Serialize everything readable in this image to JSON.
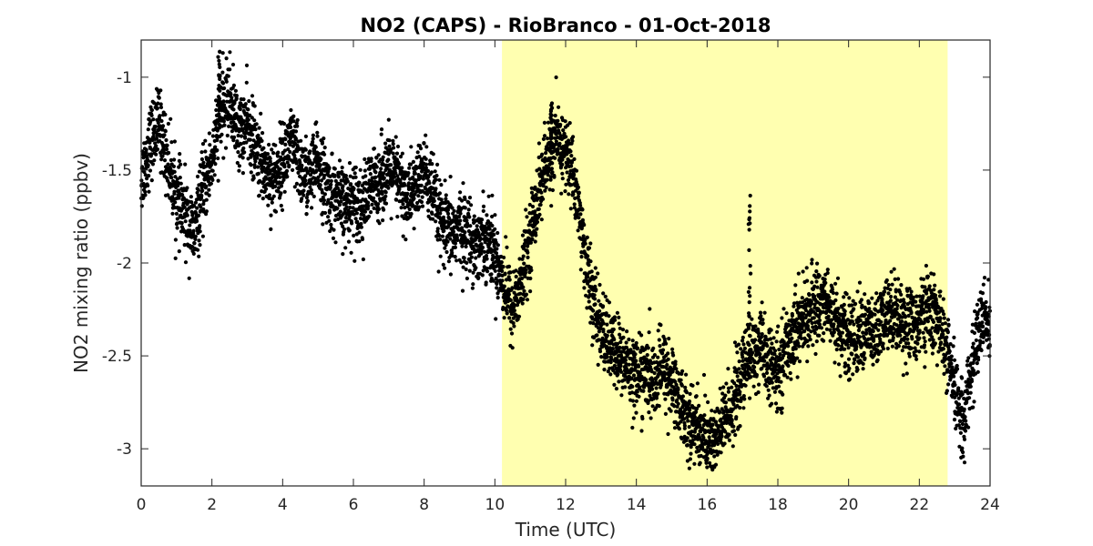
{
  "chart_data": {
    "type": "scatter",
    "title": "NO2 (CAPS) - RioBranco - 01-Oct-2018",
    "xlabel": "Time (UTC)",
    "ylabel": "NO2 mixing ratio (ppbv)",
    "xlim": [
      0,
      24
    ],
    "ylim": [
      -3.2,
      -0.8
    ],
    "xticks": [
      0,
      2,
      4,
      6,
      8,
      10,
      12,
      14,
      16,
      18,
      20,
      22,
      24
    ],
    "yticks": [
      -3,
      -2.5,
      -2,
      -1.5,
      -1
    ],
    "grid": false,
    "legend": "none",
    "marker_color": "#000000",
    "shaded_region": {
      "x": [
        10.2,
        22.8
      ],
      "color": "#ffffb0"
    },
    "series": [
      {
        "x": [
          0,
          0.25,
          0.5,
          0.75,
          1.0,
          1.25,
          1.5,
          1.75,
          2.0,
          2.25,
          2.5,
          2.75,
          3.0,
          3.25,
          3.5,
          3.75,
          4.0,
          4.25,
          4.5,
          4.75,
          5.0,
          5.25,
          5.5,
          5.75,
          6.0,
          6.25,
          6.5,
          6.75,
          7.0,
          7.25,
          7.5,
          7.75,
          8.0,
          8.25,
          8.5,
          8.75,
          9.0,
          9.25,
          9.5,
          9.75,
          10.0,
          10.25,
          10.5,
          10.75,
          11.0,
          11.25,
          11.5,
          11.75,
          12.0,
          12.25,
          12.5,
          12.75,
          13.0,
          13.25,
          13.5,
          13.75,
          14.0,
          14.25,
          14.5,
          14.75,
          15.0,
          15.25,
          15.5,
          15.75,
          16.0,
          16.25,
          16.5,
          16.75,
          17.0,
          17.25,
          17.5,
          17.75,
          18.0,
          18.25,
          18.5,
          18.75,
          19.0,
          19.25,
          19.5,
          19.75,
          20.0,
          20.25,
          20.5,
          20.75,
          21.0,
          21.25,
          21.5,
          21.75,
          22.0,
          22.25,
          22.5,
          22.75,
          23.0,
          23.25,
          23.5,
          23.75,
          24.0
        ],
        "y": [
          -1.55,
          -1.35,
          -1.25,
          -1.45,
          -1.65,
          -1.75,
          -1.85,
          -1.6,
          -1.45,
          -1.2,
          -1.1,
          -1.3,
          -1.25,
          -1.4,
          -1.5,
          -1.55,
          -1.45,
          -1.35,
          -1.5,
          -1.55,
          -1.45,
          -1.6,
          -1.65,
          -1.7,
          -1.65,
          -1.7,
          -1.6,
          -1.55,
          -1.5,
          -1.55,
          -1.65,
          -1.6,
          -1.5,
          -1.65,
          -1.8,
          -1.85,
          -1.8,
          -1.85,
          -1.9,
          -1.85,
          -1.95,
          -2.1,
          -2.25,
          -2.1,
          -1.85,
          -1.6,
          -1.45,
          -1.35,
          -1.4,
          -1.55,
          -1.9,
          -2.2,
          -2.35,
          -2.45,
          -2.5,
          -2.55,
          -2.6,
          -2.6,
          -2.65,
          -2.55,
          -2.65,
          -2.75,
          -2.85,
          -2.9,
          -2.95,
          -2.95,
          -2.85,
          -2.75,
          -2.6,
          -2.5,
          -2.45,
          -2.55,
          -2.6,
          -2.45,
          -2.35,
          -2.3,
          -2.25,
          -2.2,
          -2.25,
          -2.35,
          -2.4,
          -2.4,
          -2.35,
          -2.4,
          -2.3,
          -2.25,
          -2.3,
          -2.35,
          -2.3,
          -2.25,
          -2.3,
          -2.45,
          -2.7,
          -2.85,
          -2.55,
          -2.3,
          -2.35
        ],
        "noise_sd": 0.1,
        "samples_per_hour": 240,
        "spikes": [
          [
            17.2,
            -1.6
          ],
          [
            11.6,
            -1.1
          ],
          [
            2.2,
            -0.85
          ]
        ]
      }
    ]
  }
}
